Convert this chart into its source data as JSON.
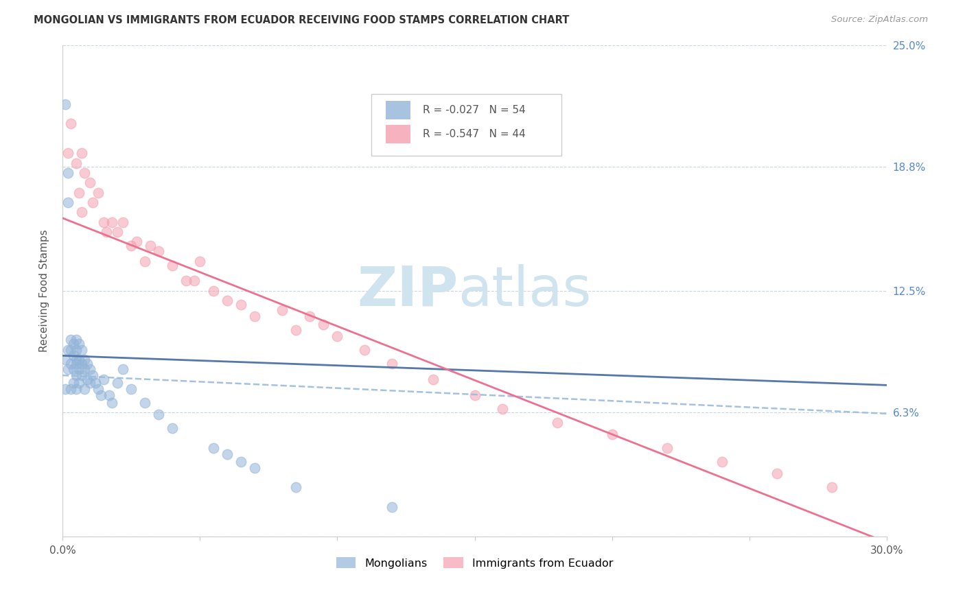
{
  "title": "MONGOLIAN VS IMMIGRANTS FROM ECUADOR RECEIVING FOOD STAMPS CORRELATION CHART",
  "source": "Source: ZipAtlas.com",
  "ylabel": "Receiving Food Stamps",
  "xmin": 0.0,
  "xmax": 0.3,
  "ymin": 0.0,
  "ymax": 0.25,
  "yticks": [
    0.0,
    0.063,
    0.125,
    0.188,
    0.25
  ],
  "ytick_labels": [
    "",
    "6.3%",
    "12.5%",
    "18.8%",
    "25.0%"
  ],
  "xticks": [
    0.0,
    0.05,
    0.1,
    0.15,
    0.2,
    0.25,
    0.3
  ],
  "xtick_labels": [
    "0.0%",
    "",
    "",
    "",
    "",
    "",
    "30.0%"
  ],
  "legend_r1": "-0.027",
  "legend_n1": "54",
  "legend_r2": "-0.547",
  "legend_n2": "44",
  "blue_color": "#92B4D8",
  "pink_color": "#F4A0B0",
  "blue_line_color": "#5577AA",
  "pink_line_color": "#EE7090",
  "blue_dashed_color": "#99BBDD",
  "watermark_zip": "ZIP",
  "watermark_atlas": "atlas",
  "watermark_color": "#D0E4F0",
  "blue_intercept": 0.092,
  "blue_slope": -0.05,
  "pink_intercept": 0.162,
  "pink_slope": -0.55,
  "blue_dash_intercept": 0.082,
  "blue_dash_slope": -0.065,
  "mongolian_x": [
    0.001,
    0.001,
    0.001,
    0.002,
    0.002,
    0.002,
    0.002,
    0.003,
    0.003,
    0.003,
    0.003,
    0.004,
    0.004,
    0.004,
    0.004,
    0.005,
    0.005,
    0.005,
    0.005,
    0.005,
    0.005,
    0.006,
    0.006,
    0.006,
    0.006,
    0.007,
    0.007,
    0.007,
    0.008,
    0.008,
    0.008,
    0.009,
    0.009,
    0.01,
    0.01,
    0.011,
    0.012,
    0.013,
    0.014,
    0.015,
    0.017,
    0.018,
    0.02,
    0.022,
    0.025,
    0.03,
    0.035,
    0.04,
    0.055,
    0.06,
    0.065,
    0.07,
    0.085,
    0.12
  ],
  "mongolian_y": [
    0.22,
    0.09,
    0.075,
    0.185,
    0.17,
    0.095,
    0.085,
    0.1,
    0.095,
    0.088,
    0.075,
    0.098,
    0.092,
    0.085,
    0.078,
    0.1,
    0.095,
    0.09,
    0.088,
    0.082,
    0.075,
    0.098,
    0.09,
    0.085,
    0.078,
    0.095,
    0.088,
    0.082,
    0.09,
    0.085,
    0.075,
    0.088,
    0.08,
    0.085,
    0.078,
    0.082,
    0.078,
    0.075,
    0.072,
    0.08,
    0.072,
    0.068,
    0.078,
    0.085,
    0.075,
    0.068,
    0.062,
    0.055,
    0.045,
    0.042,
    0.038,
    0.035,
    0.025,
    0.015
  ],
  "ecuador_x": [
    0.002,
    0.003,
    0.005,
    0.006,
    0.007,
    0.007,
    0.008,
    0.01,
    0.011,
    0.013,
    0.015,
    0.016,
    0.018,
    0.02,
    0.022,
    0.025,
    0.027,
    0.03,
    0.032,
    0.035,
    0.04,
    0.045,
    0.048,
    0.05,
    0.055,
    0.06,
    0.065,
    0.07,
    0.08,
    0.085,
    0.09,
    0.095,
    0.1,
    0.11,
    0.12,
    0.135,
    0.15,
    0.16,
    0.18,
    0.2,
    0.22,
    0.24,
    0.26,
    0.28
  ],
  "ecuador_y": [
    0.195,
    0.21,
    0.19,
    0.175,
    0.195,
    0.165,
    0.185,
    0.18,
    0.17,
    0.175,
    0.16,
    0.155,
    0.16,
    0.155,
    0.16,
    0.148,
    0.15,
    0.14,
    0.148,
    0.145,
    0.138,
    0.13,
    0.13,
    0.14,
    0.125,
    0.12,
    0.118,
    0.112,
    0.115,
    0.105,
    0.112,
    0.108,
    0.102,
    0.095,
    0.088,
    0.08,
    0.072,
    0.065,
    0.058,
    0.052,
    0.045,
    0.038,
    0.032,
    0.025
  ]
}
